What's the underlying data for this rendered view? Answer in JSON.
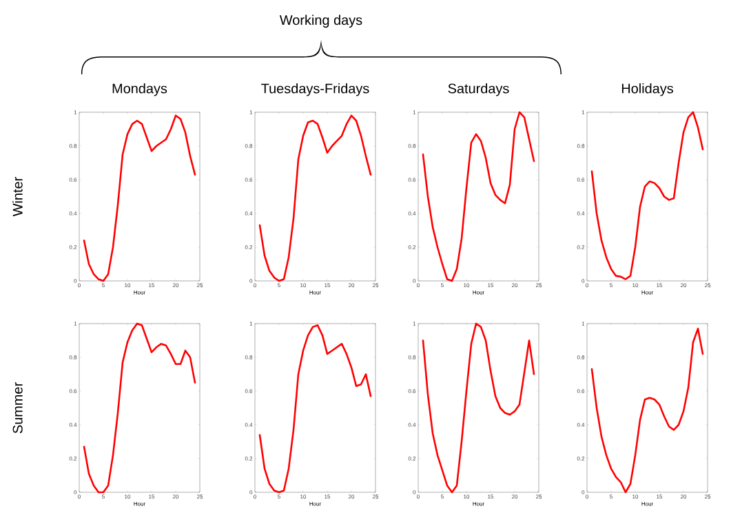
{
  "chart_data": [
    {
      "type": "line",
      "title": "Mondays",
      "ylabel": "Winter",
      "xlabel": "Hour",
      "annotations": [
        "Working days"
      ],
      "color": "#ff0000",
      "marker": "none",
      "line_style": "solid",
      "grid": false,
      "xlim": [
        0,
        25
      ],
      "ylim": [
        0,
        1
      ],
      "xticks": [
        0,
        5,
        10,
        15,
        20,
        25
      ],
      "yticks": [
        0,
        0.2,
        0.4,
        0.6,
        0.8,
        1
      ],
      "x": [
        1,
        2,
        3,
        4,
        5,
        6,
        7,
        8,
        9,
        10,
        11,
        12,
        13,
        14,
        15,
        16,
        17,
        18,
        19,
        20,
        21,
        22,
        23,
        24
      ],
      "values": [
        0.24,
        0.1,
        0.04,
        0.01,
        0.0,
        0.04,
        0.2,
        0.45,
        0.75,
        0.87,
        0.93,
        0.95,
        0.93,
        0.85,
        0.77,
        0.8,
        0.82,
        0.84,
        0.9,
        0.98,
        0.96,
        0.88,
        0.74,
        0.63
      ]
    },
    {
      "type": "line",
      "title": "Tuesdays-Fridays",
      "xlabel": "Hour",
      "color": "#ff0000",
      "marker": "none",
      "line_style": "solid",
      "grid": false,
      "xlim": [
        0,
        25
      ],
      "ylim": [
        0,
        1
      ],
      "xticks": [
        0,
        5,
        10,
        15,
        20,
        25
      ],
      "yticks": [
        0,
        0.2,
        0.4,
        0.6,
        0.8,
        1
      ],
      "x": [
        1,
        2,
        3,
        4,
        5,
        6,
        7,
        8,
        9,
        10,
        11,
        12,
        13,
        14,
        15,
        16,
        17,
        18,
        19,
        20,
        21,
        22,
        23,
        24
      ],
      "values": [
        0.33,
        0.15,
        0.06,
        0.02,
        0.0,
        0.01,
        0.14,
        0.37,
        0.72,
        0.86,
        0.94,
        0.95,
        0.93,
        0.85,
        0.76,
        0.8,
        0.83,
        0.86,
        0.93,
        0.98,
        0.95,
        0.86,
        0.74,
        0.63
      ]
    },
    {
      "type": "line",
      "title": "Saturdays",
      "xlabel": "Hour",
      "color": "#ff0000",
      "marker": "none",
      "line_style": "solid",
      "grid": false,
      "xlim": [
        0,
        25
      ],
      "ylim": [
        0,
        1
      ],
      "xticks": [
        0,
        5,
        10,
        15,
        20,
        25
      ],
      "yticks": [
        0,
        0.2,
        0.4,
        0.6,
        0.8,
        1
      ],
      "x": [
        1,
        2,
        3,
        4,
        5,
        6,
        7,
        8,
        9,
        10,
        11,
        12,
        13,
        14,
        15,
        16,
        17,
        18,
        19,
        20,
        21,
        22,
        23,
        24
      ],
      "values": [
        0.75,
        0.5,
        0.32,
        0.2,
        0.1,
        0.01,
        0.0,
        0.07,
        0.25,
        0.55,
        0.82,
        0.87,
        0.83,
        0.73,
        0.58,
        0.51,
        0.48,
        0.46,
        0.57,
        0.9,
        1.0,
        0.97,
        0.84,
        0.71
      ]
    },
    {
      "type": "line",
      "title": "Holidays",
      "xlabel": "Hour",
      "color": "#ff0000",
      "marker": "none",
      "line_style": "solid",
      "grid": false,
      "xlim": [
        0,
        25
      ],
      "ylim": [
        0,
        1
      ],
      "xticks": [
        0,
        5,
        10,
        15,
        20,
        25
      ],
      "yticks": [
        0,
        0.2,
        0.4,
        0.6,
        0.8,
        1
      ],
      "x": [
        1,
        2,
        3,
        4,
        5,
        6,
        7,
        8,
        9,
        10,
        11,
        12,
        13,
        14,
        15,
        16,
        17,
        18,
        19,
        20,
        21,
        22,
        23,
        24
      ],
      "values": [
        0.65,
        0.4,
        0.24,
        0.14,
        0.07,
        0.03,
        0.025,
        0.01,
        0.03,
        0.2,
        0.44,
        0.56,
        0.59,
        0.58,
        0.55,
        0.5,
        0.48,
        0.49,
        0.7,
        0.88,
        0.97,
        1.0,
        0.91,
        0.78
      ]
    },
    {
      "type": "line",
      "ylabel": "Summer",
      "xlabel": "Hour",
      "color": "#ff0000",
      "marker": "none",
      "line_style": "solid",
      "grid": false,
      "xlim": [
        0,
        25
      ],
      "ylim": [
        0,
        1
      ],
      "xticks": [
        0,
        5,
        10,
        15,
        20,
        25
      ],
      "yticks": [
        0,
        0.2,
        0.4,
        0.6,
        0.8,
        1
      ],
      "x": [
        1,
        2,
        3,
        4,
        5,
        6,
        7,
        8,
        9,
        10,
        11,
        12,
        13,
        14,
        15,
        16,
        17,
        18,
        19,
        20,
        21,
        22,
        23,
        24
      ],
      "values": [
        0.27,
        0.11,
        0.04,
        0.0,
        0.0,
        0.04,
        0.22,
        0.47,
        0.77,
        0.89,
        0.96,
        1.0,
        0.99,
        0.91,
        0.83,
        0.86,
        0.88,
        0.87,
        0.82,
        0.76,
        0.76,
        0.84,
        0.8,
        0.65
      ]
    },
    {
      "type": "line",
      "xlabel": "Hour",
      "color": "#ff0000",
      "marker": "none",
      "line_style": "solid",
      "grid": false,
      "xlim": [
        0,
        25
      ],
      "ylim": [
        0,
        1
      ],
      "xticks": [
        0,
        5,
        10,
        15,
        20,
        25
      ],
      "yticks": [
        0,
        0.2,
        0.4,
        0.6,
        0.8,
        1
      ],
      "x": [
        1,
        2,
        3,
        4,
        5,
        6,
        7,
        8,
        9,
        10,
        11,
        12,
        13,
        14,
        15,
        16,
        17,
        18,
        19,
        20,
        21,
        22,
        23,
        24
      ],
      "values": [
        0.34,
        0.14,
        0.05,
        0.01,
        0.0,
        0.01,
        0.14,
        0.37,
        0.7,
        0.84,
        0.93,
        0.98,
        0.99,
        0.93,
        0.82,
        0.84,
        0.86,
        0.88,
        0.82,
        0.74,
        0.63,
        0.64,
        0.7,
        0.57
      ]
    },
    {
      "type": "line",
      "xlabel": "Hour",
      "color": "#ff0000",
      "marker": "none",
      "line_style": "solid",
      "grid": false,
      "xlim": [
        0,
        25
      ],
      "ylim": [
        0,
        1
      ],
      "xticks": [
        0,
        5,
        10,
        15,
        20,
        25
      ],
      "yticks": [
        0,
        0.2,
        0.4,
        0.6,
        0.8,
        1
      ],
      "x": [
        1,
        2,
        3,
        4,
        5,
        6,
        7,
        8,
        9,
        10,
        11,
        12,
        13,
        14,
        15,
        16,
        17,
        18,
        19,
        20,
        21,
        22,
        23,
        24
      ],
      "values": [
        0.9,
        0.58,
        0.35,
        0.22,
        0.13,
        0.04,
        0.0,
        0.04,
        0.3,
        0.6,
        0.88,
        1.0,
        0.98,
        0.9,
        0.72,
        0.57,
        0.5,
        0.47,
        0.46,
        0.48,
        0.52,
        0.71,
        0.9,
        0.7
      ]
    },
    {
      "type": "line",
      "xlabel": "Hour",
      "color": "#ff0000",
      "marker": "none",
      "line_style": "solid",
      "grid": false,
      "xlim": [
        0,
        25
      ],
      "ylim": [
        0,
        1
      ],
      "xticks": [
        0,
        5,
        10,
        15,
        20,
        25
      ],
      "yticks": [
        0,
        0.2,
        0.4,
        0.6,
        0.8,
        1
      ],
      "x": [
        1,
        2,
        3,
        4,
        5,
        6,
        7,
        8,
        9,
        10,
        11,
        12,
        13,
        14,
        15,
        16,
        17,
        18,
        19,
        20,
        21,
        22,
        23,
        24
      ],
      "values": [
        0.73,
        0.5,
        0.33,
        0.22,
        0.14,
        0.09,
        0.06,
        0.0,
        0.05,
        0.22,
        0.43,
        0.55,
        0.56,
        0.55,
        0.52,
        0.45,
        0.39,
        0.37,
        0.4,
        0.48,
        0.62,
        0.89,
        0.97,
        0.82
      ]
    }
  ]
}
